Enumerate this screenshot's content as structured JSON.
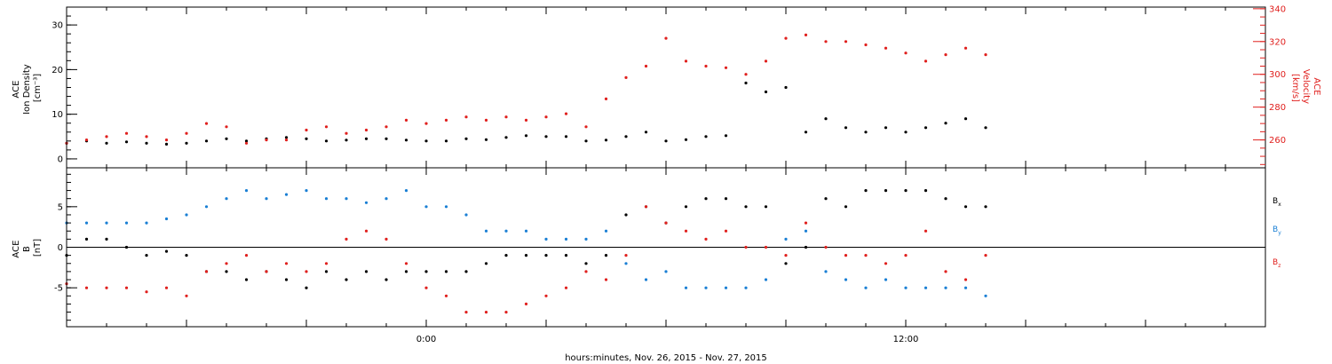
{
  "xlabel": "hours:minutes, Nov. 26, 2015 - Nov. 27, 2015",
  "x_ticks": [
    {
      "value": 0,
      "label": "0:00"
    },
    {
      "value": 12,
      "label": "12:00"
    }
  ],
  "colors": {
    "black": "#000000",
    "red": "#e0201e",
    "blue": "#1a7fd4"
  },
  "chart_data": [
    {
      "type": "scatter",
      "panel": "top",
      "xlim": [
        -9,
        21
      ],
      "x_units": "hours relative to 0:00 Nov. 27, 2015",
      "left_axis": {
        "label": [
          "ACE",
          "Ion Density",
          "[cm⁻³]"
        ],
        "ylim": [
          -2,
          34
        ],
        "ticks": [
          0,
          10,
          20,
          30
        ]
      },
      "right_axis": {
        "label": [
          "ACE",
          "Velocity",
          "[km/s]"
        ],
        "ylim": [
          243,
          341
        ],
        "ticks": [
          260,
          280,
          300,
          320,
          340
        ],
        "color": "#e0201e"
      },
      "series": [
        {
          "name": "Ion Density",
          "axis": "left",
          "color": "#000000",
          "x": [
            -9.0,
            -8.5,
            -8.0,
            -7.5,
            -7.0,
            -6.5,
            -6.0,
            -5.5,
            -5.0,
            -4.5,
            -4.0,
            -3.5,
            -3.0,
            -2.5,
            -2.0,
            -1.5,
            -1.0,
            -0.5,
            0.0,
            0.5,
            1.0,
            1.5,
            2.0,
            2.5,
            3.0,
            3.5,
            4.0,
            4.5,
            5.0,
            5.5,
            6.0,
            6.5,
            7.0,
            7.5,
            8.0,
            8.5,
            9.0,
            9.5,
            10.0,
            10.5,
            11.0,
            11.5,
            12.0,
            12.5,
            13.0,
            13.5,
            14.0
          ],
          "y": [
            3.5,
            4,
            3.5,
            3.8,
            3.5,
            3.3,
            3.5,
            4,
            4.5,
            4,
            4.5,
            4.8,
            4.5,
            4,
            4.2,
            4.5,
            4.5,
            4.2,
            4,
            4,
            4.5,
            4.3,
            4.8,
            5.2,
            5,
            5,
            4,
            4.2,
            5,
            6,
            4,
            4.3,
            5,
            5.2,
            17,
            15,
            16,
            6,
            9,
            7,
            6,
            7,
            6,
            7,
            8,
            9,
            7
          ]
        },
        {
          "name": "Velocity",
          "axis": "right",
          "color": "#e0201e",
          "x": [
            -9.0,
            -8.5,
            -8.0,
            -7.5,
            -7.0,
            -6.5,
            -6.0,
            -5.5,
            -5.0,
            -4.5,
            -4.0,
            -3.5,
            -3.0,
            -2.5,
            -2.0,
            -1.5,
            -1.0,
            -0.5,
            0.0,
            0.5,
            1.0,
            1.5,
            2.0,
            2.5,
            3.0,
            3.5,
            4.0,
            4.5,
            5.0,
            5.5,
            6.0,
            6.5,
            7.0,
            7.5,
            8.0,
            8.5,
            9.0,
            9.5,
            10.0,
            10.5,
            11.0,
            11.5,
            12.0,
            12.5,
            13.0,
            13.5,
            14.0
          ],
          "y": [
            258,
            260,
            262,
            264,
            262,
            260,
            264,
            270,
            268,
            258,
            260,
            260,
            266,
            268,
            264,
            266,
            268,
            272,
            270,
            272,
            274,
            272,
            274,
            272,
            274,
            276,
            268,
            285,
            298,
            305,
            322,
            308,
            305,
            304,
            300,
            308,
            322,
            324,
            320,
            320,
            318,
            316,
            313,
            308,
            312,
            316,
            312
          ]
        }
      ]
    },
    {
      "type": "scatter",
      "panel": "bottom",
      "xlim": [
        -9,
        21
      ],
      "x_units": "hours relative to 0:00 Nov. 27, 2015",
      "left_axis": {
        "label": [
          "ACE",
          "B",
          "[nT]"
        ],
        "ylim": [
          -9.8,
          9.8
        ],
        "ticks": [
          -5,
          0,
          5
        ]
      },
      "zero_line": true,
      "series": [
        {
          "name": "Bx",
          "color": "#000000",
          "x": [
            -9.0,
            -8.5,
            -8.0,
            -7.5,
            -7.0,
            -6.5,
            -6.0,
            -5.5,
            -5.0,
            -4.5,
            -4.0,
            -3.5,
            -3.0,
            -2.5,
            -2.0,
            -1.5,
            -1.0,
            -0.5,
            0.0,
            0.5,
            1.0,
            1.5,
            2.0,
            2.5,
            3.0,
            3.5,
            4.0,
            4.5,
            5.0,
            5.5,
            6.0,
            6.5,
            7.0,
            7.5,
            8.0,
            8.5,
            9.0,
            9.5,
            10.0,
            10.5,
            11.0,
            11.5,
            12.0,
            12.5,
            13.0,
            13.5,
            14.0
          ],
          "y": [
            -1,
            1,
            1,
            0,
            -1,
            -0.5,
            -1,
            -3,
            -3,
            -4,
            -3,
            -4,
            -5,
            -3,
            -4,
            -3,
            -4,
            -3,
            -3,
            -3,
            -3,
            -2,
            -1,
            -1,
            -1,
            -1,
            -2,
            -1,
            4,
            5,
            3,
            5,
            6,
            6,
            5,
            5,
            -2,
            0,
            6,
            5,
            7,
            7,
            7,
            7,
            6,
            5,
            5
          ]
        },
        {
          "name": "By",
          "color": "#1a7fd4",
          "x": [
            -9.0,
            -8.5,
            -8.0,
            -7.5,
            -7.0,
            -6.5,
            -6.0,
            -5.5,
            -5.0,
            -4.5,
            -4.0,
            -3.5,
            -3.0,
            -2.5,
            -2.0,
            -1.5,
            -1.0,
            -0.5,
            0.0,
            0.5,
            1.0,
            1.5,
            2.0,
            2.5,
            3.0,
            3.5,
            4.0,
            4.5,
            5.0,
            5.5,
            6.0,
            6.5,
            7.0,
            7.5,
            8.0,
            8.5,
            9.0,
            9.5,
            10.0,
            10.5,
            11.0,
            11.5,
            12.0,
            12.5,
            13.0,
            13.5,
            14.0
          ],
          "y": [
            3,
            3,
            3,
            3,
            3,
            3.5,
            4,
            5,
            6,
            7,
            6,
            6.5,
            7,
            6,
            6,
            5.5,
            6,
            7,
            5,
            5,
            4,
            2,
            2,
            2,
            1,
            1,
            1,
            2,
            -2,
            -4,
            -3,
            -5,
            -5,
            -5,
            -5,
            -4,
            1,
            2,
            -3,
            -4,
            -5,
            -4,
            -5,
            -5,
            -5,
            -5,
            -6
          ]
        },
        {
          "name": "Bz",
          "color": "#e0201e",
          "x": [
            -9.0,
            -8.5,
            -8.0,
            -7.5,
            -7.0,
            -6.5,
            -6.0,
            -5.5,
            -5.0,
            -4.5,
            -4.0,
            -3.5,
            -3.0,
            -2.5,
            -2.0,
            -1.5,
            -1.0,
            -0.5,
            0.0,
            0.5,
            1.0,
            1.5,
            2.0,
            2.5,
            3.0,
            3.5,
            4.0,
            4.5,
            5.0,
            5.5,
            6.0,
            6.5,
            7.0,
            7.5,
            8.0,
            8.5,
            9.0,
            9.5,
            10.0,
            10.5,
            11.0,
            11.5,
            12.0,
            12.5,
            13.0,
            13.5,
            14.0
          ],
          "y": [
            -4.5,
            -5,
            -5,
            -5,
            -5.5,
            -5,
            -6,
            -3,
            -2,
            -1,
            -3,
            -2,
            -3,
            -2,
            1,
            2,
            1,
            -2,
            -5,
            -6,
            -8,
            -8,
            -8,
            -7,
            -6,
            -5,
            -3,
            -4,
            -1,
            5,
            3,
            2,
            1,
            2,
            0,
            0,
            -1,
            3,
            0,
            -1,
            -1,
            -2,
            -1,
            2,
            -3,
            -4,
            -1
          ]
        }
      ],
      "legend": {
        "placement": "right",
        "entries": [
          {
            "label": "B",
            "subscript": "x",
            "color": "#000000"
          },
          {
            "label": "B",
            "subscript": "y",
            "color": "#1a7fd4"
          },
          {
            "label": "B",
            "subscript": "z",
            "color": "#e0201e"
          }
        ]
      }
    }
  ]
}
